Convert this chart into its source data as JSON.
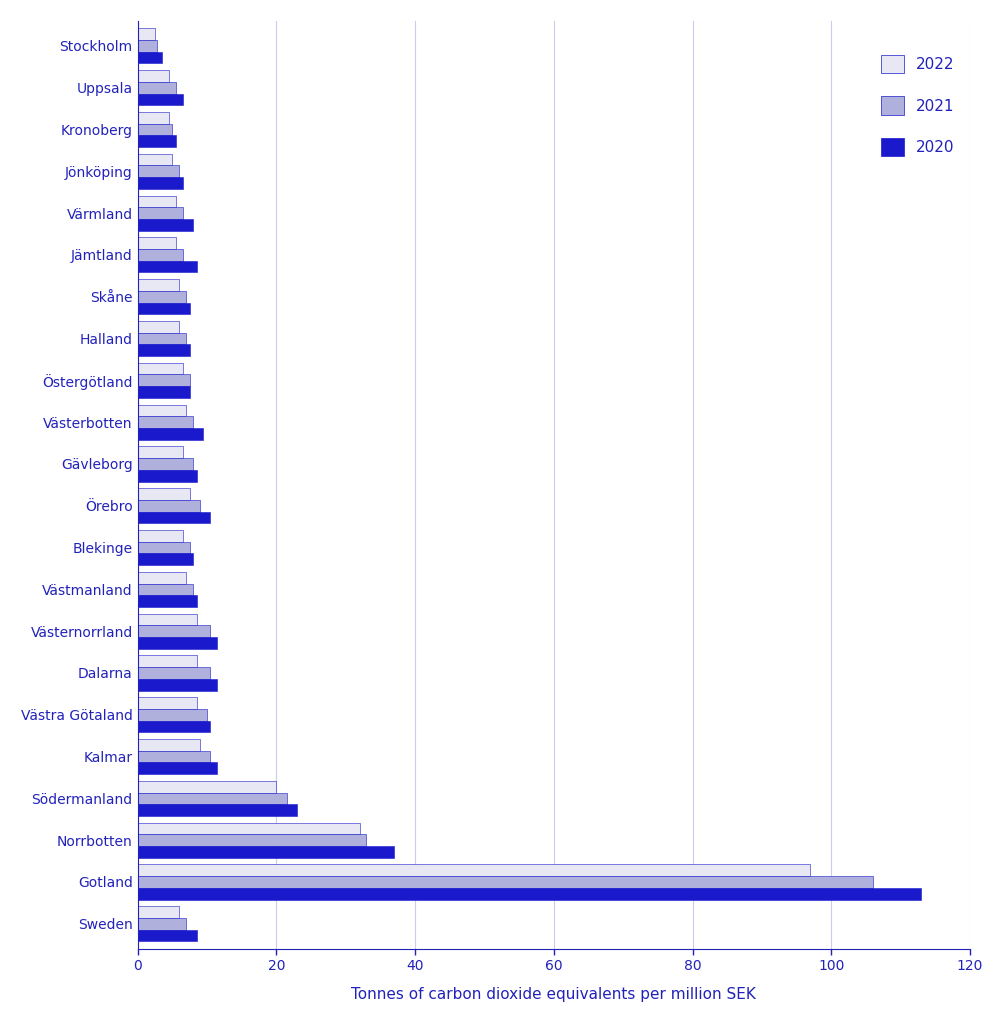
{
  "categories": [
    "Sweden",
    "Gotland",
    "Norrbotten",
    "Södermanland",
    "Kalmar",
    "Västra Götaland",
    "Dalarna",
    "Västernorrland",
    "Västmanland",
    "Blekinge",
    "Örebro",
    "Gävleborg",
    "Västerbotten",
    "Östergötland",
    "Halland",
    "Skåne",
    "Jämtland",
    "Värmland",
    "Jönköping",
    "Kronoberg",
    "Uppsala",
    "Stockholm"
  ],
  "values_2022": [
    6.0,
    97.0,
    32.0,
    20.0,
    9.0,
    8.5,
    8.5,
    8.5,
    7.0,
    6.5,
    7.5,
    6.5,
    7.0,
    6.5,
    6.0,
    6.0,
    5.5,
    5.5,
    5.0,
    4.5,
    4.5,
    2.5
  ],
  "values_2021": [
    7.0,
    106.0,
    33.0,
    21.5,
    10.5,
    10.0,
    10.5,
    10.5,
    8.0,
    7.5,
    9.0,
    8.0,
    8.0,
    7.5,
    7.0,
    7.0,
    6.5,
    6.5,
    6.0,
    5.0,
    5.5,
    2.8
  ],
  "values_2020": [
    8.5,
    113.0,
    37.0,
    23.0,
    11.5,
    10.5,
    11.5,
    11.5,
    8.5,
    8.0,
    10.5,
    8.5,
    9.5,
    7.5,
    7.5,
    7.5,
    8.5,
    8.0,
    6.5,
    5.5,
    6.5,
    3.5
  ],
  "color_2022": "#e8e8f5",
  "color_2021": "#b0b0dc",
  "color_2020": "#1a1acc",
  "xlabel": "Tonnes of carbon dioxide equivalents per million SEK",
  "xlim": [
    0,
    120
  ],
  "xticks": [
    0,
    20,
    40,
    60,
    80,
    100,
    120
  ],
  "title_color": "#2222bb",
  "background_color": "#ffffff",
  "grid_color": "#ccccee"
}
